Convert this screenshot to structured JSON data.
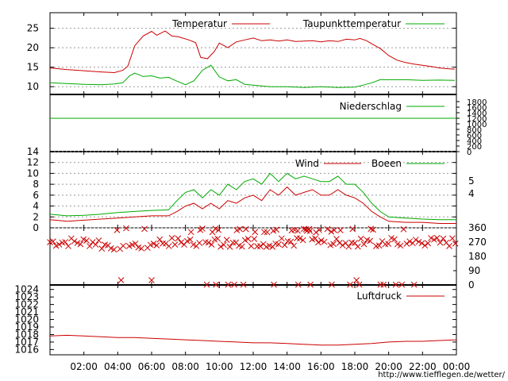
{
  "chart_data": [
    {
      "type": "line",
      "panel": "temperature",
      "series": [
        {
          "name": "Temperatur",
          "color": "#cc0000",
          "x": [
            0,
            1,
            2,
            3,
            3.8,
            4.3,
            4.6,
            5,
            5.5,
            6,
            6.3,
            6.8,
            7.2,
            7.6,
            8.2,
            8.6,
            8.9,
            9.3,
            9.7,
            10,
            10.5,
            11,
            11.5,
            12,
            12.5,
            13,
            13.5,
            14,
            14.5,
            15,
            15.5,
            16,
            16.5,
            17,
            17.5,
            18,
            18.3,
            18.7,
            19,
            19.5,
            20,
            20.5,
            21,
            21.5,
            22,
            22.5,
            23,
            23.5,
            23.9
          ],
          "y": [
            14.8,
            14.4,
            14.1,
            13.8,
            13.6,
            14.2,
            15.3,
            20.5,
            23,
            24.2,
            23.2,
            24.3,
            23,
            22.8,
            22,
            21.3,
            17.5,
            17.2,
            19,
            21.2,
            20,
            21.5,
            22,
            22.5,
            21.8,
            22,
            21.7,
            22,
            21.6,
            21.7,
            21.8,
            21.5,
            21.8,
            21.6,
            22.2,
            22,
            22.4,
            21.8,
            21,
            19.8,
            18,
            16.8,
            16.2,
            15.8,
            15.5,
            15.2,
            14.8,
            14.6,
            14.5
          ]
        },
        {
          "name": "Taupunkttemperatur",
          "color": "#00aa00",
          "x": [
            0,
            1,
            2,
            3,
            3.8,
            4.3,
            4.7,
            5,
            5.5,
            6,
            6.5,
            7,
            7.5,
            8,
            8.5,
            9,
            9.5,
            10,
            10.5,
            11,
            11.5,
            12,
            13,
            14,
            15,
            16,
            17,
            18,
            18.5,
            19,
            19.5,
            20,
            21,
            22,
            23,
            23.9
          ],
          "y": [
            11,
            10.8,
            10.6,
            10.5,
            10.7,
            11,
            12.8,
            13.5,
            12.6,
            12.8,
            12.2,
            12.4,
            11.4,
            10.5,
            11.5,
            14.2,
            15.5,
            12.5,
            11.5,
            11.8,
            10.6,
            10.4,
            10,
            10,
            9.8,
            10,
            9.8,
            9.9,
            10.4,
            11,
            11.8,
            11.8,
            11.8,
            11.6,
            11.7,
            11.6
          ]
        }
      ],
      "xlim": [
        0,
        24
      ],
      "ylim": [
        8,
        29
      ],
      "yticks": [
        10,
        15,
        20,
        25
      ],
      "grid": true,
      "legend": "top"
    },
    {
      "type": "line",
      "panel": "precipitation",
      "series": [
        {
          "name": "Niederschlag",
          "color": "#00aa00",
          "x": [
            0,
            24
          ],
          "y": [
            0,
            0
          ]
        }
      ],
      "xlim": [
        0,
        24
      ],
      "yticks_right": [
        "0",
        "200",
        "400",
        "600",
        "800",
        "1000",
        "1200",
        "1400",
        "1600",
        "1800"
      ],
      "legend": "top-right"
    },
    {
      "type": "line",
      "panel": "wind",
      "series": [
        {
          "name": "Wind",
          "color": "#cc0000",
          "x": [
            0,
            1,
            2,
            3,
            4,
            5,
            6,
            7,
            7.5,
            8,
            8.5,
            9,
            9.5,
            10,
            10.5,
            11,
            11.5,
            12,
            12.5,
            13,
            13.5,
            14,
            14.5,
            15,
            15.5,
            16,
            16.5,
            17,
            17.5,
            18,
            18.5,
            19,
            19.5,
            20,
            21,
            22,
            23,
            24
          ],
          "y": [
            1.5,
            1.2,
            1.4,
            1.6,
            1.8,
            2,
            2.2,
            2.2,
            3,
            4,
            4.5,
            3.5,
            4.5,
            3.5,
            5,
            4.5,
            5.5,
            6,
            5,
            7,
            6,
            7.5,
            6,
            6.5,
            7,
            6,
            6,
            7,
            6,
            5.5,
            4.5,
            3,
            2,
            1.2,
            1,
            1,
            0.8,
            0.8
          ]
        },
        {
          "name": "Boeen",
          "color": "#00aa00",
          "x": [
            0,
            1,
            2,
            3,
            4,
            5,
            6,
            7,
            7.5,
            8,
            8.5,
            9,
            9.5,
            10,
            10.5,
            11,
            11.5,
            12,
            12.5,
            13,
            13.5,
            14,
            14.5,
            15,
            15.5,
            16,
            16.5,
            17,
            17.5,
            18,
            18.5,
            19,
            19.5,
            20,
            21,
            22,
            23,
            24
          ],
          "y": [
            2.5,
            2.2,
            2.3,
            2.5,
            2.8,
            3,
            3.2,
            3.3,
            5,
            6.5,
            7,
            5.5,
            7,
            6,
            8,
            7,
            8.5,
            9,
            8,
            10,
            8.5,
            10,
            9,
            9.5,
            9,
            8.5,
            8.5,
            9.5,
            8,
            8,
            6.5,
            4.5,
            3,
            2,
            1.8,
            1.6,
            1.5,
            1.5
          ]
        }
      ],
      "xlim": [
        0,
        24
      ],
      "ylim": [
        0,
        14
      ],
      "yticks": [
        0,
        2,
        4,
        6,
        8,
        10,
        12,
        14
      ],
      "yticks_right": [
        "4",
        "5"
      ],
      "grid": true,
      "legend": "top"
    },
    {
      "type": "scatter",
      "panel": "wind_direction",
      "marker": "x",
      "color": "#cc0000",
      "ylim": [
        0,
        360
      ],
      "yticks_right": [
        "0",
        "90",
        "180",
        "270",
        "360"
      ],
      "xlim": [
        0,
        24
      ]
    },
    {
      "type": "line",
      "panel": "pressure",
      "series": [
        {
          "name": "Luftdruck",
          "color": "#cc0000",
          "x": [
            0,
            1,
            2,
            3,
            4,
            5,
            6,
            7,
            8,
            9,
            10,
            11,
            12,
            13,
            14,
            15,
            16,
            17,
            18,
            19,
            20,
            21,
            22,
            23,
            24
          ],
          "y": [
            1017.8,
            1017.9,
            1017.8,
            1017.7,
            1017.6,
            1017.6,
            1017.5,
            1017.4,
            1017.3,
            1017.2,
            1017.1,
            1017,
            1016.9,
            1016.9,
            1016.8,
            1016.7,
            1016.6,
            1016.6,
            1016.7,
            1016.8,
            1017,
            1017.1,
            1017.1,
            1017.2,
            1017.3
          ]
        }
      ],
      "xlim": [
        0,
        24
      ],
      "ylim": [
        1015.3,
        1024.6
      ],
      "yticks": [
        1016,
        1017,
        1018,
        1019,
        1020,
        1021,
        1022,
        1023,
        1024
      ],
      "legend": "top-right"
    }
  ],
  "x_axis": {
    "tick_labels": [
      "02:00",
      "04:00",
      "06:00",
      "08:00",
      "10:00",
      "12:00",
      "14:00",
      "16:00",
      "18:00",
      "20:00",
      "22:00",
      "00:00"
    ]
  },
  "credit": "http://www.tiefflegen.de/wetter/"
}
